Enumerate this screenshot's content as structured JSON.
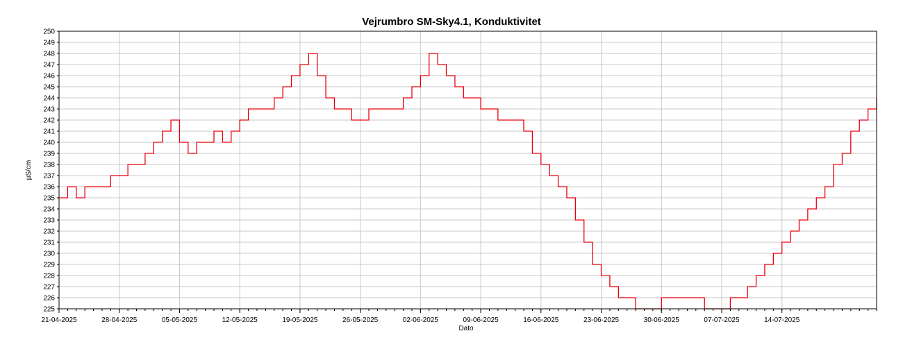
{
  "chart_data": {
    "type": "line",
    "title": "Vejrumbro SM-Sky4.1, Konduktivitet",
    "xlabel": "Dato",
    "ylabel": "µS/cm",
    "xlim": [
      "2025-04-21",
      "2025-07-25"
    ],
    "ylim": [
      225,
      250
    ],
    "grid": true,
    "line_color": "#e8000b",
    "x_ticks": [
      "21-04-2025",
      "28-04-2025",
      "05-05-2025",
      "12-05-2025",
      "19-05-2025",
      "26-05-2025",
      "02-06-2025",
      "09-06-2025",
      "16-06-2025",
      "23-06-2025",
      "30-06-2025",
      "07-07-2025",
      "14-07-2025"
    ],
    "y_ticks": [
      225,
      226,
      227,
      228,
      229,
      230,
      231,
      232,
      233,
      234,
      235,
      236,
      237,
      238,
      239,
      240,
      241,
      242,
      243,
      244,
      245,
      246,
      247,
      248,
      249,
      250
    ],
    "series": [
      {
        "x": [
          "2025-04-21",
          "2025-04-22",
          "2025-04-23",
          "2025-04-24",
          "2025-04-25",
          "2025-04-26",
          "2025-04-27",
          "2025-04-28",
          "2025-04-29",
          "2025-04-30",
          "2025-05-01",
          "2025-05-02",
          "2025-05-03",
          "2025-05-04",
          "2025-05-05",
          "2025-05-06",
          "2025-05-07",
          "2025-05-08",
          "2025-05-09",
          "2025-05-10",
          "2025-05-11",
          "2025-05-12",
          "2025-05-13",
          "2025-05-14",
          "2025-05-15",
          "2025-05-16",
          "2025-05-17",
          "2025-05-18",
          "2025-05-19",
          "2025-05-20",
          "2025-05-21",
          "2025-05-22",
          "2025-05-23",
          "2025-05-24",
          "2025-05-25",
          "2025-05-26",
          "2025-05-27",
          "2025-05-28",
          "2025-05-29",
          "2025-05-30",
          "2025-05-31",
          "2025-06-01",
          "2025-06-02",
          "2025-06-03",
          "2025-06-04",
          "2025-06-05",
          "2025-06-06",
          "2025-06-07",
          "2025-06-08",
          "2025-06-09",
          "2025-06-10",
          "2025-06-11",
          "2025-06-12",
          "2025-06-13",
          "2025-06-14",
          "2025-06-15",
          "2025-06-16",
          "2025-06-17",
          "2025-06-18",
          "2025-06-19",
          "2025-06-20",
          "2025-06-21",
          "2025-06-22",
          "2025-06-23",
          "2025-06-24",
          "2025-06-25",
          "2025-06-26",
          "2025-06-27",
          "2025-06-28",
          "2025-06-29",
          "2025-06-30",
          "2025-07-01",
          "2025-07-02",
          "2025-07-03",
          "2025-07-04",
          "2025-07-05",
          "2025-07-06",
          "2025-07-07",
          "2025-07-08",
          "2025-07-09",
          "2025-07-10",
          "2025-07-11",
          "2025-07-12",
          "2025-07-13",
          "2025-07-14",
          "2025-07-15",
          "2025-07-16",
          "2025-07-17",
          "2025-07-18",
          "2025-07-19",
          "2025-07-20",
          "2025-07-21",
          "2025-07-22",
          "2025-07-23",
          "2025-07-24",
          "2025-07-25"
        ],
        "y": [
          235,
          236,
          235,
          236,
          236,
          236,
          237,
          237,
          238,
          238,
          239,
          240,
          241,
          242,
          240,
          239,
          240,
          240,
          241,
          240,
          241,
          242,
          243,
          243,
          243,
          244,
          245,
          246,
          247,
          248,
          246,
          244,
          243,
          243,
          242,
          242,
          243,
          243,
          243,
          243,
          244,
          245,
          246,
          248,
          247,
          246,
          245,
          244,
          244,
          243,
          243,
          242,
          242,
          242,
          241,
          239,
          238,
          237,
          236,
          235,
          233,
          231,
          229,
          228,
          227,
          226,
          226,
          225,
          225,
          225,
          226,
          226,
          226,
          226,
          226,
          225,
          225,
          225,
          226,
          226,
          227,
          228,
          229,
          230,
          231,
          232,
          233,
          234,
          235,
          236,
          238,
          239,
          241,
          242,
          243,
          244
        ]
      }
    ]
  }
}
